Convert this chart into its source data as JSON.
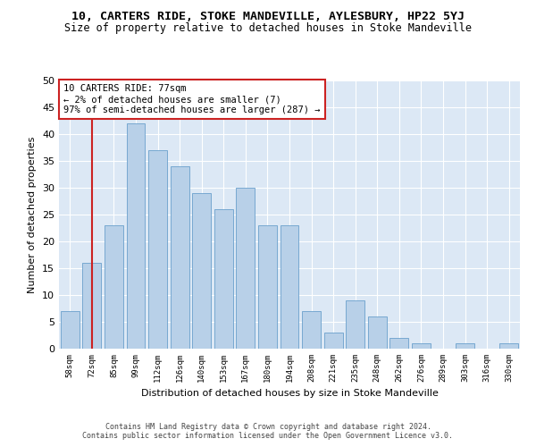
{
  "title1": "10, CARTERS RIDE, STOKE MANDEVILLE, AYLESBURY, HP22 5YJ",
  "title2": "Size of property relative to detached houses in Stoke Mandeville",
  "xlabel": "Distribution of detached houses by size in Stoke Mandeville",
  "ylabel": "Number of detached properties",
  "categories": [
    "58sqm",
    "72sqm",
    "85sqm",
    "99sqm",
    "112sqm",
    "126sqm",
    "140sqm",
    "153sqm",
    "167sqm",
    "180sqm",
    "194sqm",
    "208sqm",
    "221sqm",
    "235sqm",
    "248sqm",
    "262sqm",
    "276sqm",
    "289sqm",
    "303sqm",
    "316sqm",
    "330sqm"
  ],
  "values": [
    7,
    16,
    23,
    42,
    37,
    34,
    29,
    26,
    30,
    23,
    23,
    7,
    3,
    9,
    6,
    2,
    1,
    0,
    1,
    0,
    1
  ],
  "bar_color": "#b8d0e8",
  "bar_edge_color": "#6aa0cc",
  "vline_x": 1,
  "vline_color": "#cc2222",
  "annotation_text": "10 CARTERS RIDE: 77sqm\n← 2% of detached houses are smaller (7)\n97% of semi-detached houses are larger (287) →",
  "annotation_box_color": "#ffffff",
  "annotation_box_edge": "#cc2222",
  "ylim": [
    0,
    50
  ],
  "yticks": [
    0,
    5,
    10,
    15,
    20,
    25,
    30,
    35,
    40,
    45,
    50
  ],
  "background_color": "#dce8f5",
  "footer1": "Contains HM Land Registry data © Crown copyright and database right 2024.",
  "footer2": "Contains public sector information licensed under the Open Government Licence v3.0.",
  "title1_fontsize": 9.5,
  "title2_fontsize": 8.5,
  "xlabel_fontsize": 8,
  "ylabel_fontsize": 8,
  "annotation_fontsize": 7.5,
  "footer_fontsize": 6
}
